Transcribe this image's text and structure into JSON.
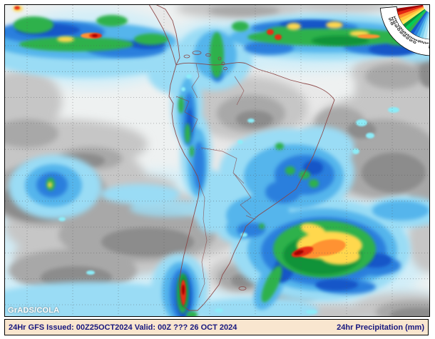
{
  "credit": "GrADS/COLA",
  "status_bar": {
    "left": "24Hr GFS Issued: 00Z25OCT2024 Valid: 00Z ??? 26 OCT 2024",
    "right": "24hr Precipitation (mm)"
  },
  "legend": {
    "description": "24hr precipitation amount scale (mm), fan-shaped color key",
    "values": [
      "0.2",
      "1",
      "2",
      "5",
      "10",
      "15",
      "20",
      "25",
      "35",
      "50",
      "75",
      "100",
      "125"
    ],
    "colors": [
      "#dff4fa",
      "#b0e6f7",
      "#7fd0f0",
      "#4aaee9",
      "#2b7fdd",
      "#1757c8",
      "#2fb14c",
      "#00cc55",
      "#0c9038",
      "#ffe65a",
      "#ffc83c",
      "#ff8a2a",
      "#e42612",
      "#9e0000"
    ]
  },
  "palette": {
    "bar_background": "#f9e6cf",
    "bar_text": "#16167e",
    "land": "#e8e8e8",
    "coastline": "#8a4545",
    "cloud_gray_light": "#c6c6c6",
    "cloud_gray_mid": "#a8a8a8",
    "cloud_gray_dark": "#8c8c8c",
    "grid_line": "#555555"
  }
}
